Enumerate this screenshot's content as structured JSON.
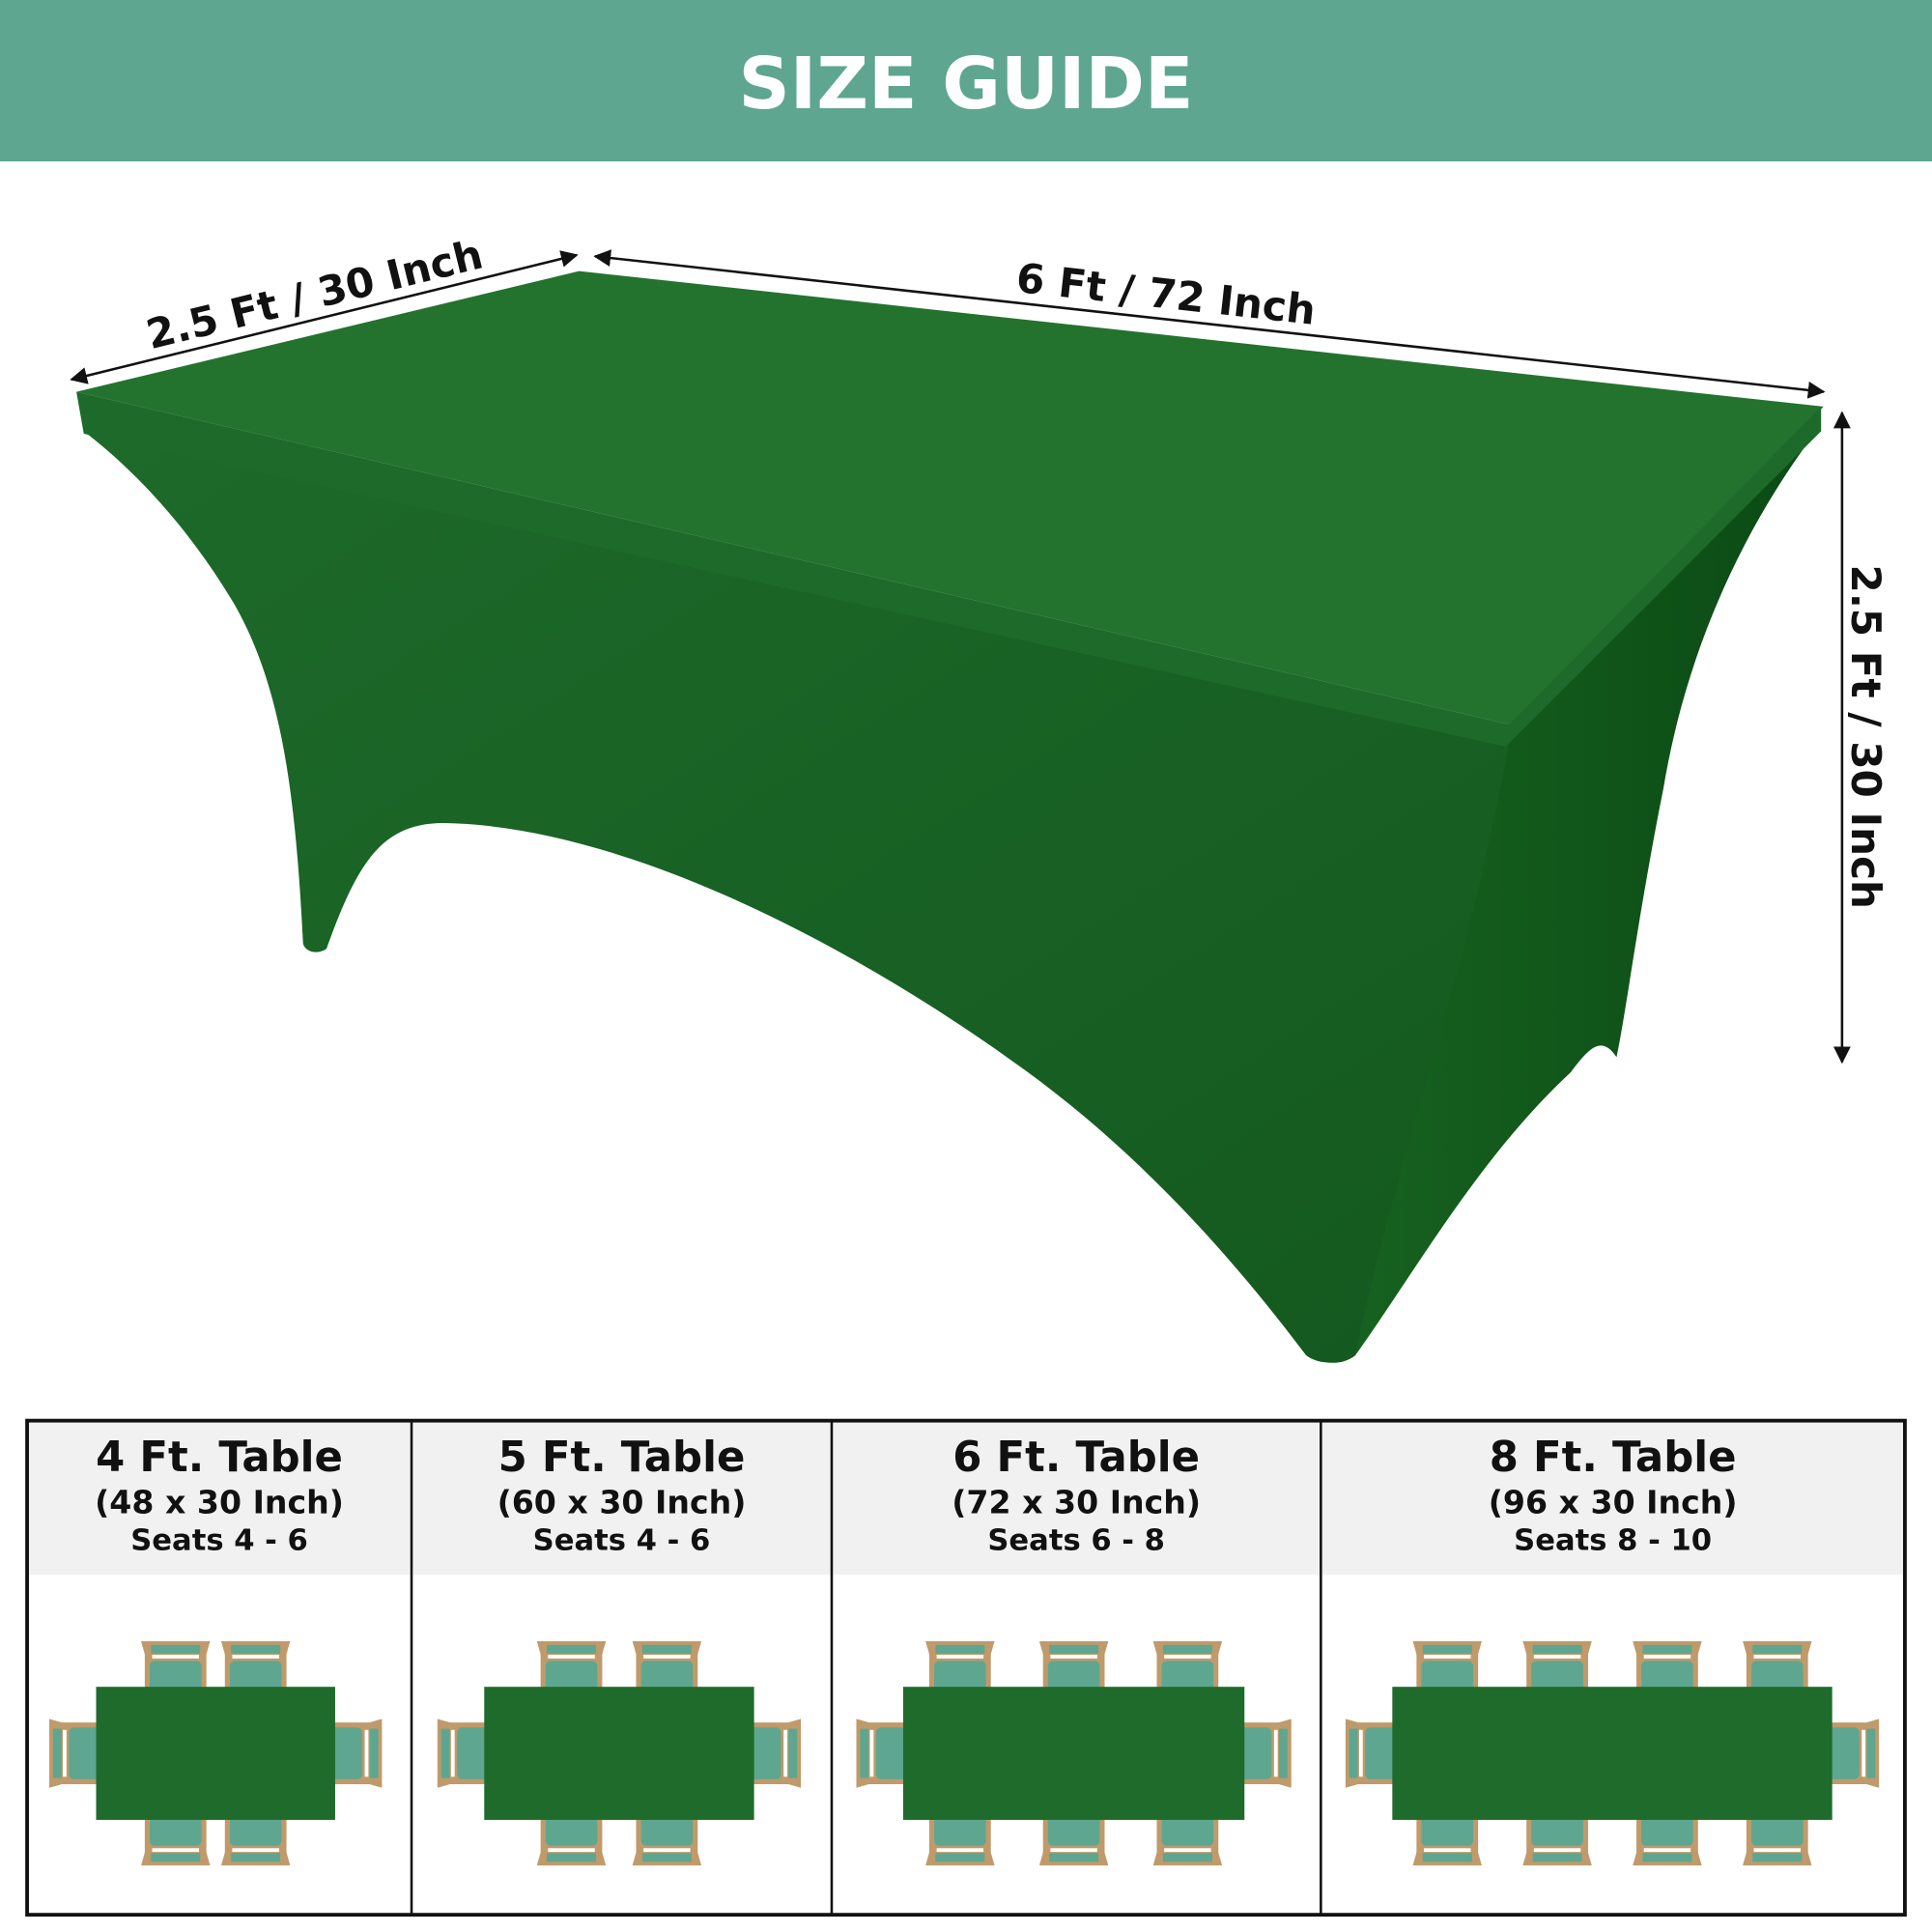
{
  "header": {
    "title": "SIZE GUIDE"
  },
  "colors": {
    "banner": "#5ea690",
    "cloth": "#1f6b2c",
    "cloth_dark": "#0f5018",
    "chair_seat": "#5ea690",
    "chair_frame": "#c09a6a",
    "header_bg": "#f1f1f1"
  },
  "dimensions": {
    "width_label": "2.5 Ft / 30 Inch",
    "length_label": "6 Ft / 72 Inch",
    "height_label": "2.5 Ft / 30 Inch"
  },
  "sizes": [
    {
      "title": "4 Ft. Table",
      "dims": "(48 x 30 Inch)",
      "seats": "Seats 4 - 6",
      "chairs_per_long_side": 2,
      "chairs_per_end": 1
    },
    {
      "title": "5 Ft. Table",
      "dims": "(60 x 30 Inch)",
      "seats": "Seats 4 - 6",
      "chairs_per_long_side": 2,
      "chairs_per_end": 1
    },
    {
      "title": "6 Ft. Table",
      "dims": "(72 x 30 Inch)",
      "seats": "Seats 6 - 8",
      "chairs_per_long_side": 3,
      "chairs_per_end": 1
    },
    {
      "title": "8 Ft. Table",
      "dims": "(96 x 30 Inch)",
      "seats": "Seats 8 - 10",
      "chairs_per_long_side": 4,
      "chairs_per_end": 1
    }
  ]
}
